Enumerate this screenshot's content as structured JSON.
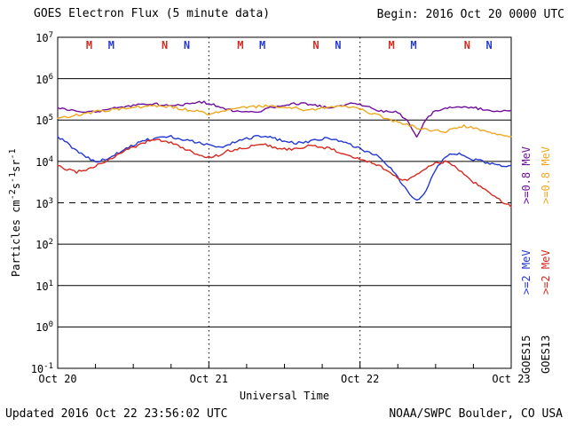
{
  "header": {
    "title": "GOES Electron Flux (5 minute data)",
    "begin": "Begin: 2016 Oct 20 0000 UTC"
  },
  "footer": {
    "updated": "Updated 2016 Oct 22 23:56:02 UTC",
    "source": "NOAA/SWPC Boulder, CO USA"
  },
  "chart_data": {
    "type": "line",
    "title": "GOES Electron Flux (5 minute data)",
    "xlabel": "Universal Time",
    "ylabel": "Particles cm⁻²s⁻¹sr⁻¹",
    "ylabel_parts": [
      {
        "t": "Particles cm"
      },
      {
        "t": "-2",
        "sup": true
      },
      {
        "t": "s"
      },
      {
        "t": "-1",
        "sup": true
      },
      {
        "t": "sr"
      },
      {
        "t": "-1",
        "sup": true
      }
    ],
    "y_scale": "log",
    "ylim": [
      0.1,
      10000000
    ],
    "y_tick_base": "10",
    "y_tick_exponents": [
      7,
      6,
      5,
      4,
      3,
      2,
      1,
      0,
      -1
    ],
    "x_start": "2016 Oct 20 0000 UTC",
    "x_end": "2016 Oct 23 0000 UTC",
    "x_range_hours": [
      0,
      72
    ],
    "x_ticks": [
      {
        "label": "Oct 20",
        "hour": 0
      },
      {
        "label": "Oct 21",
        "hour": 24
      },
      {
        "label": "Oct 22",
        "hour": 48
      },
      {
        "label": "Oct 23",
        "hour": 72
      }
    ],
    "x_minor_tick_step_hours": 6,
    "day_lines_hours": [
      24,
      48
    ],
    "threshold_flux": 1000,
    "x_hours": [
      0,
      1.5,
      3,
      4.5,
      6,
      7.5,
      9,
      10.5,
      12,
      13.5,
      15,
      16.5,
      18,
      19.5,
      21,
      22.5,
      24,
      25.5,
      27,
      28.5,
      30,
      31.5,
      33,
      34.5,
      36,
      37.5,
      39,
      40.5,
      42,
      43.5,
      45,
      46.5,
      48,
      49.5,
      51,
      52.5,
      54,
      55.5,
      57,
      58.5,
      60,
      61.5,
      63,
      64.5,
      66,
      67.5,
      69,
      70.5,
      72
    ],
    "series": [
      {
        "name": "GOES15 >=0.8 MeV",
        "color": "#70109c",
        "values": [
          200000.0,
          180000.0,
          170000.0,
          160000.0,
          160000.0,
          170000.0,
          190000.0,
          210000.0,
          230000.0,
          250000.0,
          250000.0,
          230000.0,
          210000.0,
          230000.0,
          250000.0,
          280000.0,
          250000.0,
          210000.0,
          180000.0,
          160000.0,
          150000.0,
          160000.0,
          180000.0,
          210000.0,
          230000.0,
          250000.0,
          250000.0,
          230000.0,
          210000.0,
          210000.0,
          230000.0,
          250000.0,
          230000.0,
          200000.0,
          170000.0,
          160000.0,
          150000.0,
          100000.0,
          38000.0,
          110000.0,
          170000.0,
          200000.0,
          210000.0,
          210000.0,
          200000.0,
          180000.0,
          170000.0,
          170000.0,
          170000.0
        ]
      },
      {
        "name": "GOES13 >=0.8 MeV",
        "color": "#eea820",
        "values": [
          110000.0,
          120000.0,
          130000.0,
          140000.0,
          160000.0,
          170000.0,
          180000.0,
          190000.0,
          200000.0,
          210000.0,
          220000.0,
          220000.0,
          210000.0,
          190000.0,
          170000.0,
          160000.0,
          140000.0,
          160000.0,
          170000.0,
          190000.0,
          200000.0,
          210000.0,
          220000.0,
          220000.0,
          210000.0,
          200000.0,
          180000.0,
          180000.0,
          200000.0,
          210000.0,
          210000.0,
          200000.0,
          180000.0,
          150000.0,
          130000.0,
          100000.0,
          89000.0,
          76000.0,
          66000.0,
          60000.0,
          56000.0,
          52000.0,
          63000.0,
          71000.0,
          66000.0,
          56000.0,
          48000.0,
          43000.0,
          40000.0
        ]
      },
      {
        "name": "GOES15 >=2 MeV",
        "color": "#2438d2",
        "values": [
          40000.0,
          28000.0,
          18000.0,
          13000.0,
          10000.0,
          11000.0,
          14000.0,
          20000.0,
          25000.0,
          32000.0,
          35000.0,
          40000.0,
          40000.0,
          35000.0,
          32000.0,
          28000.0,
          25000.0,
          22000.0,
          25000.0,
          32000.0,
          35000.0,
          40000.0,
          40000.0,
          35000.0,
          32000.0,
          28000.0,
          28000.0,
          32000.0,
          35000.0,
          35000.0,
          32000.0,
          25000.0,
          20000.0,
          16000.0,
          13000.0,
          7900.0,
          4000.0,
          2000.0,
          1100.0,
          2000.0,
          6300.0,
          13000.0,
          16000.0,
          14000.0,
          11000.0,
          10000.0,
          8900.0,
          7900.0,
          7900.0
        ]
      },
      {
        "name": "GOES13 >=2 MeV",
        "color": "#d42a20",
        "values": [
          7900.0,
          6300.0,
          5600.0,
          6300.0,
          7900.0,
          10000.0,
          13000.0,
          18000.0,
          22000.0,
          28000.0,
          32000.0,
          32000.0,
          28000.0,
          22000.0,
          18000.0,
          14000.0,
          13000.0,
          14000.0,
          18000.0,
          20000.0,
          22000.0,
          25000.0,
          25000.0,
          22000.0,
          20000.0,
          20000.0,
          22000.0,
          25000.0,
          22000.0,
          20000.0,
          16000.0,
          13000.0,
          11000.0,
          10000.0,
          7900.0,
          5600.0,
          4000.0,
          3500.0,
          5000.0,
          7100.0,
          8900.0,
          10000.0,
          7900.0,
          5000.0,
          3200.0,
          2200.0,
          1600.0,
          1100.0,
          790.0
        ]
      }
    ],
    "markers": [
      {
        "label": "M",
        "satellite": "GOES13",
        "hour": 5,
        "color": "#d42a20"
      },
      {
        "label": "M",
        "satellite": "GOES15",
        "hour": 8.5,
        "color": "#2438d2"
      },
      {
        "label": "N",
        "satellite": "GOES13",
        "hour": 17,
        "color": "#d42a20"
      },
      {
        "label": "N",
        "satellite": "GOES15",
        "hour": 20.5,
        "color": "#2438d2"
      },
      {
        "label": "M",
        "satellite": "GOES13",
        "hour": 29,
        "color": "#d42a20"
      },
      {
        "label": "M",
        "satellite": "GOES15",
        "hour": 32.5,
        "color": "#2438d2"
      },
      {
        "label": "N",
        "satellite": "GOES13",
        "hour": 41,
        "color": "#d42a20"
      },
      {
        "label": "N",
        "satellite": "GOES15",
        "hour": 44.5,
        "color": "#2438d2"
      },
      {
        "label": "M",
        "satellite": "GOES13",
        "hour": 53,
        "color": "#d42a20"
      },
      {
        "label": "M",
        "satellite": "GOES15",
        "hour": 56.5,
        "color": "#2438d2"
      },
      {
        "label": "N",
        "satellite": "GOES13",
        "hour": 65,
        "color": "#d42a20"
      },
      {
        "label": "N",
        "satellite": "GOES15",
        "hour": 68.5,
        "color": "#2438d2"
      }
    ],
    "legend_columns": [
      {
        "satellite": "GOES15",
        "labels": [
          {
            "text": ">=0.8 MeV",
            "color": "#70109c"
          },
          {
            "text": ">=2 MeV",
            "color": "#2438d2"
          }
        ]
      },
      {
        "satellite": "GOES13",
        "labels": [
          {
            "text": ">=0.8 MeV",
            "color": "#eea820"
          },
          {
            "text": ">=2 MeV",
            "color": "#d42a20"
          }
        ]
      }
    ],
    "legend_position": "right",
    "grid": "decade horizontal lines, dotted day boundaries, dashed alert line at 1e3"
  }
}
